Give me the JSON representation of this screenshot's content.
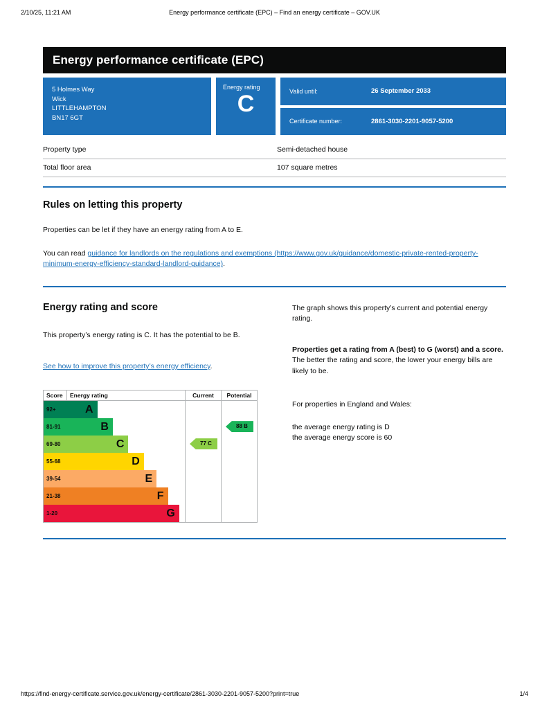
{
  "print_header": {
    "datetime": "2/10/25, 11:21 AM",
    "title": "Energy performance certificate (EPC) – Find an energy certificate – GOV.UK"
  },
  "banner": {
    "title": "Energy performance certificate (EPC)"
  },
  "summary": {
    "address_lines": [
      "5 Holmes Way",
      "Wick",
      "LITTLEHAMPTON",
      "BN17 6GT"
    ],
    "energy_rating_label": "Energy rating",
    "energy_rating_value": "C",
    "valid_until_label": "Valid until:",
    "valid_until_value": "26 September 2033",
    "certificate_number_label": "Certificate number:",
    "certificate_number_value": "2861-3030-2201-9057-5200",
    "box_color": "#1d70b8"
  },
  "property_facts": [
    {
      "label": "Property type",
      "value": "Semi-detached house"
    },
    {
      "label": "Total floor area",
      "value": "107 square metres"
    }
  ],
  "rules_section": {
    "heading": "Rules on letting this property",
    "paragraph": "Properties can be let if they have an energy rating from A to E.",
    "guidance_prefix": "You can read ",
    "guidance_link": "guidance for landlords on the regulations and exemptions (https://www.gov.uk/guidance/domestic-private-rented-property-minimum-energy-efficiency-standard-landlord-guidance)",
    "guidance_suffix": "."
  },
  "rating_section": {
    "heading": "Energy rating and score",
    "left_paragraph": "This property’s energy rating is C. It has the potential to be B.",
    "improve_link": "See how to improve this property’s energy efficiency",
    "improve_suffix": ".",
    "right_paragraph1": "The graph shows this property’s current and potential energy rating.",
    "right_bold": "Properties get a rating from A (best) to G (worst) and a score.",
    "right_paragraph2": " The better the rating and score, the lower your energy bills are likely to be.",
    "right_paragraph3": "For properties in England and Wales:",
    "right_line1": "the average energy rating is D",
    "right_line2": "the average energy score is 60"
  },
  "chart_data": {
    "type": "bar",
    "title": "Energy rating and score chart",
    "columns": [
      "Score",
      "Energy rating",
      "Current",
      "Potential"
    ],
    "bands": [
      {
        "score": "92+",
        "letter": "A",
        "color": "#008054",
        "width_pct": 38
      },
      {
        "score": "81-91",
        "letter": "B",
        "color": "#19b459",
        "width_pct": 49
      },
      {
        "score": "69-80",
        "letter": "C",
        "color": "#8dce46",
        "width_pct": 60
      },
      {
        "score": "55-68",
        "letter": "D",
        "color": "#ffd500",
        "width_pct": 71
      },
      {
        "score": "39-54",
        "letter": "E",
        "color": "#fcaa65",
        "width_pct": 80
      },
      {
        "score": "21-38",
        "letter": "F",
        "color": "#ef8023",
        "width_pct": 88
      },
      {
        "score": "1-20",
        "letter": "G",
        "color": "#e9153b",
        "width_pct": 96
      }
    ],
    "current": {
      "score": 77,
      "letter": "C",
      "band_index": 2,
      "color": "#8dce46"
    },
    "potential": {
      "score": 88,
      "letter": "B",
      "band_index": 1,
      "color": "#19b459"
    }
  },
  "footer": {
    "url": "https://find-energy-certificate.service.gov.uk/energy-certificate/2861-3030-2201-9057-5200?print=true",
    "page": "1/4"
  }
}
